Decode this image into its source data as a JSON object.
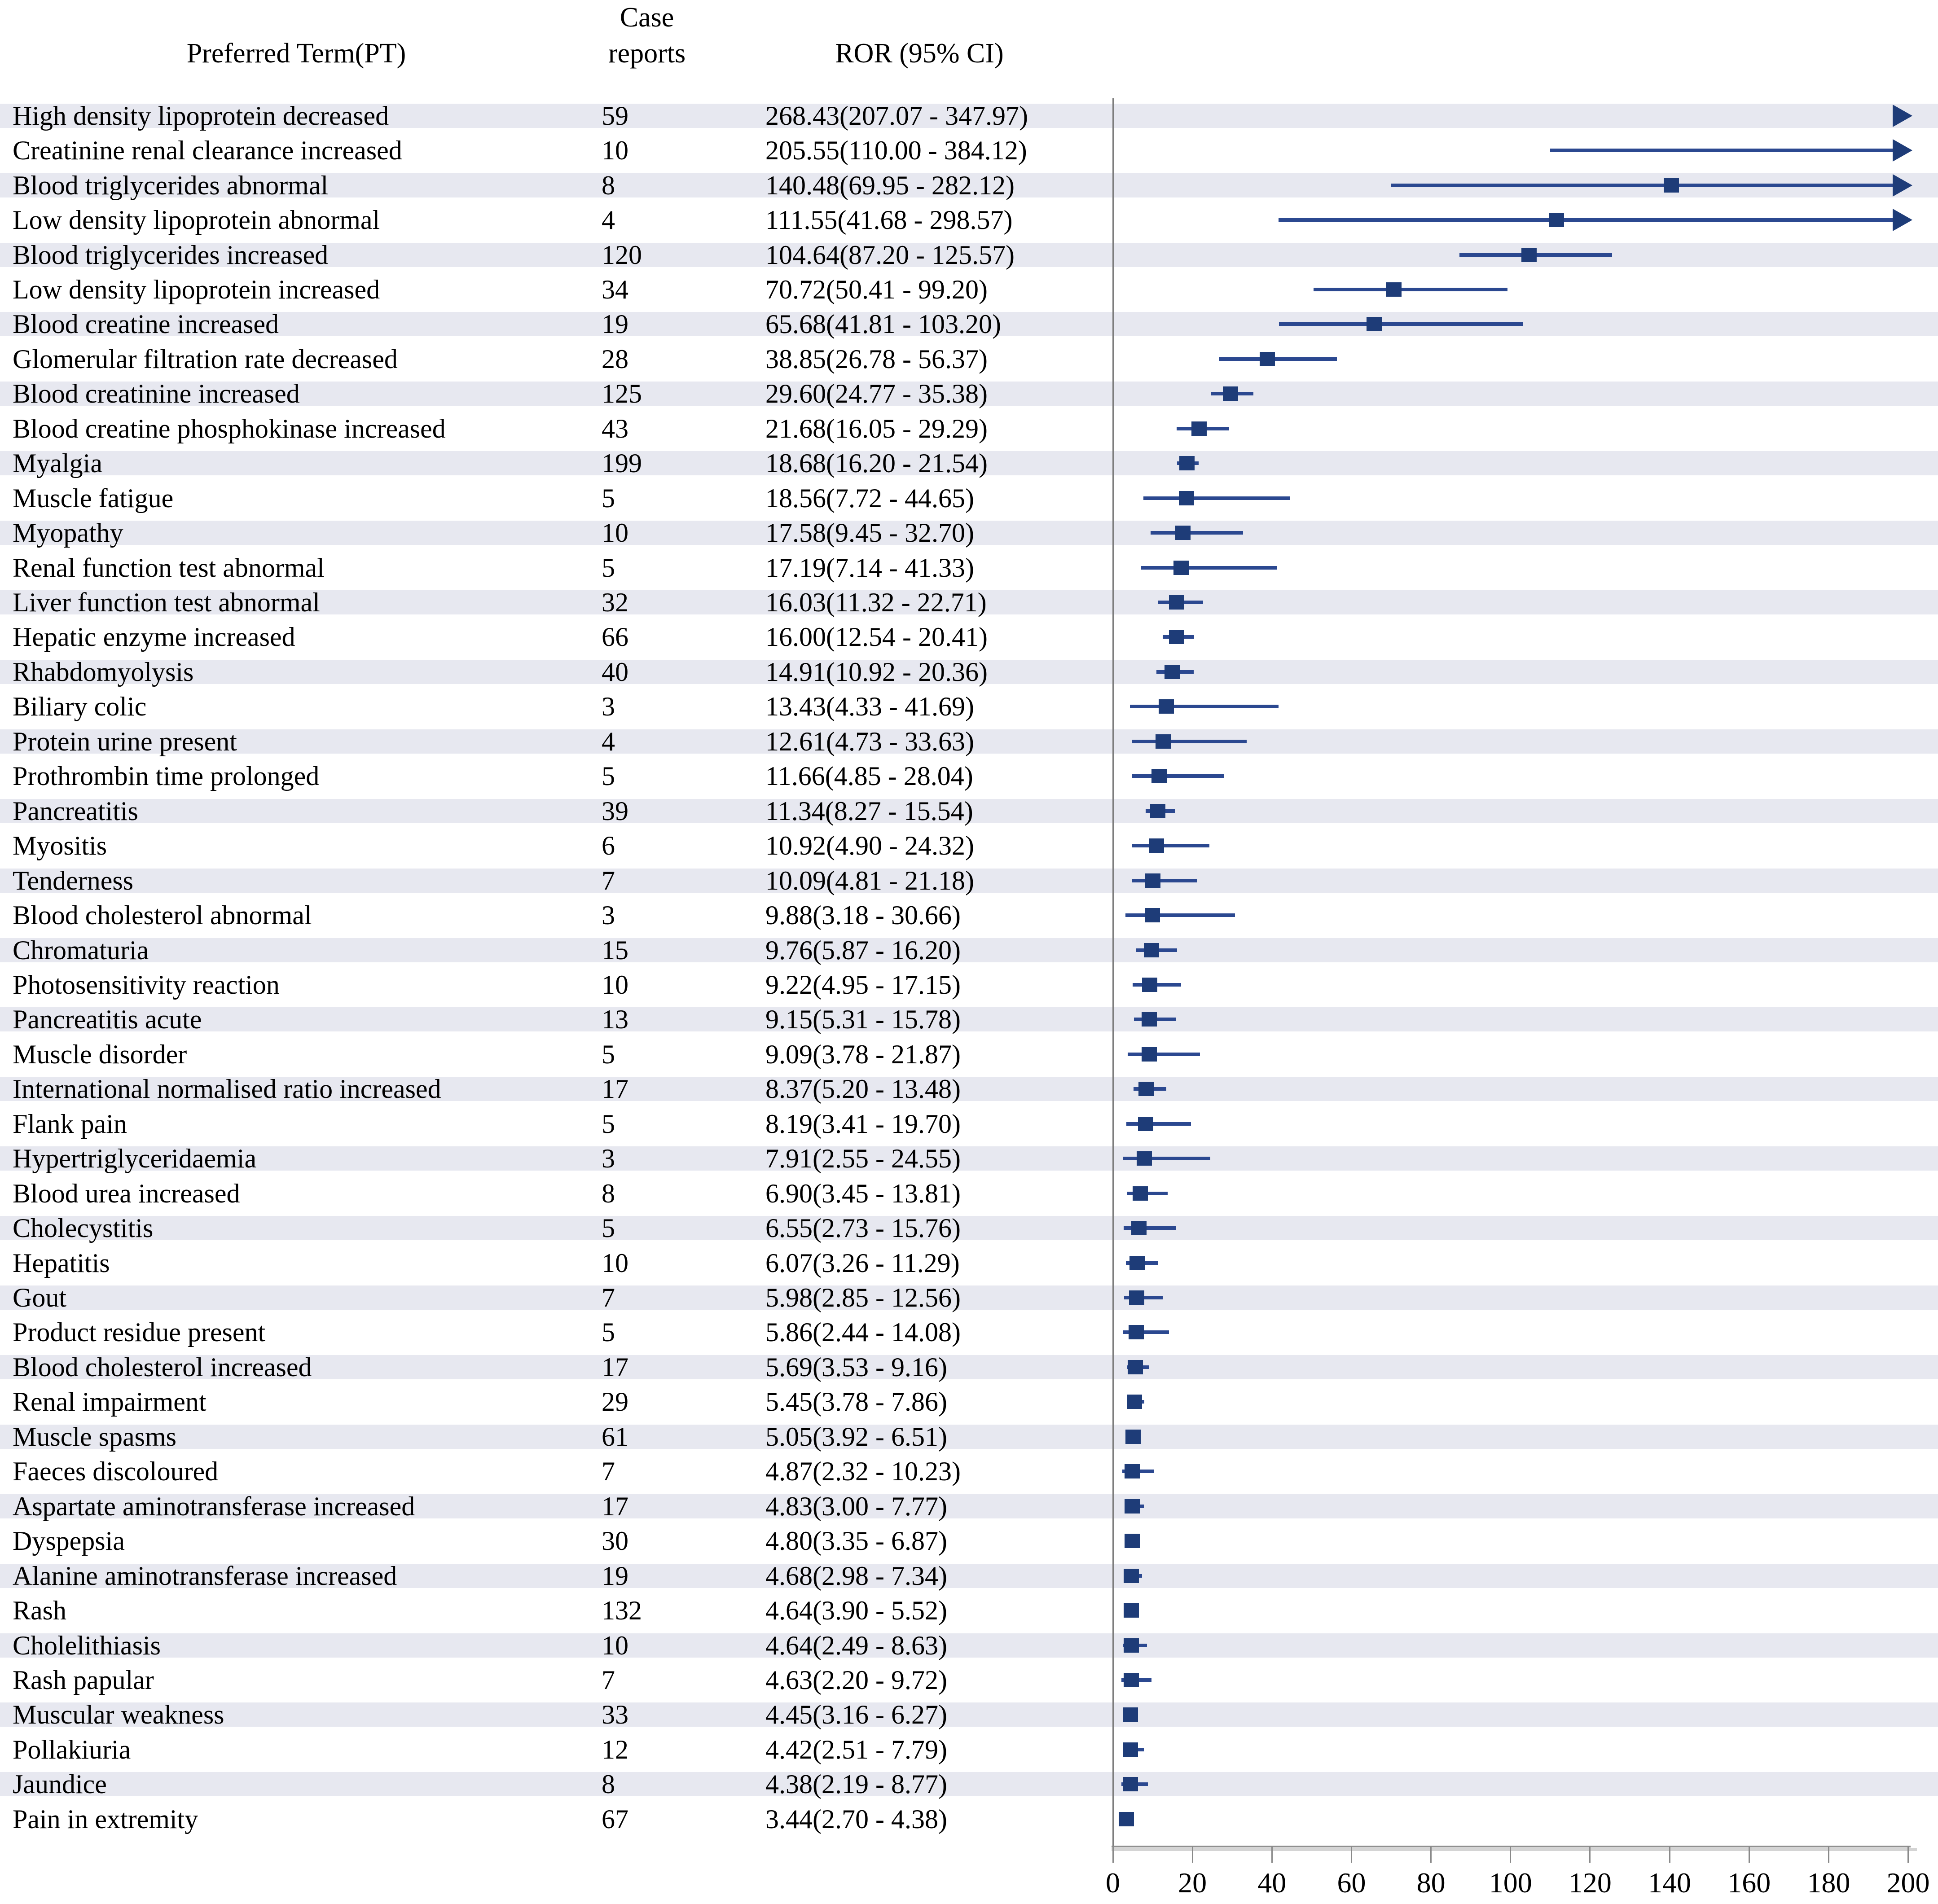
{
  "header": {
    "preferred_term": "Preferred Term(PT)",
    "case_line1": "Case",
    "case_line2": "reports",
    "ror": "ROR (95% CI)"
  },
  "colors": {
    "marker": "#1e3c78",
    "ci_line": "#2b4890",
    "stripe": "#e7e8f0",
    "axis": "#8a8a8a",
    "reference_line": "#7d7d7d",
    "text": "#000000"
  },
  "chart_data": {
    "type": "forest",
    "title": "",
    "columns": [
      "Preferred Term(PT)",
      "Case reports",
      "ROR (95% CI)"
    ],
    "xlabel": "",
    "xlim": [
      0,
      200
    ],
    "x_ticks": [
      0,
      20,
      40,
      60,
      80,
      100,
      120,
      140,
      160,
      180,
      200
    ],
    "reference_line_x": 0,
    "grid": false,
    "rows": [
      {
        "pt": "High density lipoprotein decreased",
        "case_reports": 59,
        "ror": 268.43,
        "ci_low": 207.07,
        "ci_high": 347.97
      },
      {
        "pt": "Creatinine renal clearance increased",
        "case_reports": 10,
        "ror": 205.55,
        "ci_low": 110.0,
        "ci_high": 384.12
      },
      {
        "pt": "Blood triglycerides abnormal",
        "case_reports": 8,
        "ror": 140.48,
        "ci_low": 69.95,
        "ci_high": 282.12
      },
      {
        "pt": "Low density lipoprotein abnormal",
        "case_reports": 4,
        "ror": 111.55,
        "ci_low": 41.68,
        "ci_high": 298.57
      },
      {
        "pt": "Blood triglycerides increased",
        "case_reports": 120,
        "ror": 104.64,
        "ci_low": 87.2,
        "ci_high": 125.57
      },
      {
        "pt": "Low density lipoprotein increased",
        "case_reports": 34,
        "ror": 70.72,
        "ci_low": 50.41,
        "ci_high": 99.2
      },
      {
        "pt": "Blood creatine increased",
        "case_reports": 19,
        "ror": 65.68,
        "ci_low": 41.81,
        "ci_high": 103.2
      },
      {
        "pt": "Glomerular filtration rate decreased",
        "case_reports": 28,
        "ror": 38.85,
        "ci_low": 26.78,
        "ci_high": 56.37
      },
      {
        "pt": "Blood creatinine increased",
        "case_reports": 125,
        "ror": 29.6,
        "ci_low": 24.77,
        "ci_high": 35.38
      },
      {
        "pt": "Blood creatine phosphokinase increased",
        "case_reports": 43,
        "ror": 21.68,
        "ci_low": 16.05,
        "ci_high": 29.29
      },
      {
        "pt": "Myalgia",
        "case_reports": 199,
        "ror": 18.68,
        "ci_low": 16.2,
        "ci_high": 21.54
      },
      {
        "pt": "Muscle fatigue",
        "case_reports": 5,
        "ror": 18.56,
        "ci_low": 7.72,
        "ci_high": 44.65
      },
      {
        "pt": "Myopathy",
        "case_reports": 10,
        "ror": 17.58,
        "ci_low": 9.45,
        "ci_high": 32.7
      },
      {
        "pt": "Renal function test abnormal",
        "case_reports": 5,
        "ror": 17.19,
        "ci_low": 7.14,
        "ci_high": 41.33
      },
      {
        "pt": "Liver function test abnormal",
        "case_reports": 32,
        "ror": 16.03,
        "ci_low": 11.32,
        "ci_high": 22.71
      },
      {
        "pt": "Hepatic enzyme increased",
        "case_reports": 66,
        "ror": 16.0,
        "ci_low": 12.54,
        "ci_high": 20.41
      },
      {
        "pt": "Rhabdomyolysis",
        "case_reports": 40,
        "ror": 14.91,
        "ci_low": 10.92,
        "ci_high": 20.36
      },
      {
        "pt": "Biliary colic",
        "case_reports": 3,
        "ror": 13.43,
        "ci_low": 4.33,
        "ci_high": 41.69
      },
      {
        "pt": "Protein urine present",
        "case_reports": 4,
        "ror": 12.61,
        "ci_low": 4.73,
        "ci_high": 33.63
      },
      {
        "pt": "Prothrombin time prolonged",
        "case_reports": 5,
        "ror": 11.66,
        "ci_low": 4.85,
        "ci_high": 28.04
      },
      {
        "pt": "Pancreatitis",
        "case_reports": 39,
        "ror": 11.34,
        "ci_low": 8.27,
        "ci_high": 15.54
      },
      {
        "pt": "Myositis",
        "case_reports": 6,
        "ror": 10.92,
        "ci_low": 4.9,
        "ci_high": 24.32
      },
      {
        "pt": "Tenderness",
        "case_reports": 7,
        "ror": 10.09,
        "ci_low": 4.81,
        "ci_high": 21.18
      },
      {
        "pt": "Blood cholesterol abnormal",
        "case_reports": 3,
        "ror": 9.88,
        "ci_low": 3.18,
        "ci_high": 30.66
      },
      {
        "pt": "Chromaturia",
        "case_reports": 15,
        "ror": 9.76,
        "ci_low": 5.87,
        "ci_high": 16.2
      },
      {
        "pt": "Photosensitivity reaction",
        "case_reports": 10,
        "ror": 9.22,
        "ci_low": 4.95,
        "ci_high": 17.15
      },
      {
        "pt": "Pancreatitis acute",
        "case_reports": 13,
        "ror": 9.15,
        "ci_low": 5.31,
        "ci_high": 15.78
      },
      {
        "pt": "Muscle disorder",
        "case_reports": 5,
        "ror": 9.09,
        "ci_low": 3.78,
        "ci_high": 21.87
      },
      {
        "pt": "International normalised ratio increased",
        "case_reports": 17,
        "ror": 8.37,
        "ci_low": 5.2,
        "ci_high": 13.48
      },
      {
        "pt": "Flank pain",
        "case_reports": 5,
        "ror": 8.19,
        "ci_low": 3.41,
        "ci_high": 19.7
      },
      {
        "pt": "Hypertriglyceridaemia",
        "case_reports": 3,
        "ror": 7.91,
        "ci_low": 2.55,
        "ci_high": 24.55
      },
      {
        "pt": "Blood urea increased",
        "case_reports": 8,
        "ror": 6.9,
        "ci_low": 3.45,
        "ci_high": 13.81
      },
      {
        "pt": "Cholecystitis",
        "case_reports": 5,
        "ror": 6.55,
        "ci_low": 2.73,
        "ci_high": 15.76
      },
      {
        "pt": "Hepatitis",
        "case_reports": 10,
        "ror": 6.07,
        "ci_low": 3.26,
        "ci_high": 11.29
      },
      {
        "pt": "Gout",
        "case_reports": 7,
        "ror": 5.98,
        "ci_low": 2.85,
        "ci_high": 12.56
      },
      {
        "pt": "Product residue present",
        "case_reports": 5,
        "ror": 5.86,
        "ci_low": 2.44,
        "ci_high": 14.08
      },
      {
        "pt": "Blood cholesterol increased",
        "case_reports": 17,
        "ror": 5.69,
        "ci_low": 3.53,
        "ci_high": 9.16
      },
      {
        "pt": "Renal impairment",
        "case_reports": 29,
        "ror": 5.45,
        "ci_low": 3.78,
        "ci_high": 7.86
      },
      {
        "pt": "Muscle spasms",
        "case_reports": 61,
        "ror": 5.05,
        "ci_low": 3.92,
        "ci_high": 6.51
      },
      {
        "pt": "Faeces discoloured",
        "case_reports": 7,
        "ror": 4.87,
        "ci_low": 2.32,
        "ci_high": 10.23
      },
      {
        "pt": "Aspartate aminotransferase increased",
        "case_reports": 17,
        "ror": 4.83,
        "ci_low": 3.0,
        "ci_high": 7.77
      },
      {
        "pt": "Dyspepsia",
        "case_reports": 30,
        "ror": 4.8,
        "ci_low": 3.35,
        "ci_high": 6.87
      },
      {
        "pt": "Alanine aminotransferase increased",
        "case_reports": 19,
        "ror": 4.68,
        "ci_low": 2.98,
        "ci_high": 7.34
      },
      {
        "pt": "Rash",
        "case_reports": 132,
        "ror": 4.64,
        "ci_low": 3.9,
        "ci_high": 5.52
      },
      {
        "pt": "Cholelithiasis",
        "case_reports": 10,
        "ror": 4.64,
        "ci_low": 2.49,
        "ci_high": 8.63
      },
      {
        "pt": "Rash papular",
        "case_reports": 7,
        "ror": 4.63,
        "ci_low": 2.2,
        "ci_high": 9.72
      },
      {
        "pt": "Muscular weakness",
        "case_reports": 33,
        "ror": 4.45,
        "ci_low": 3.16,
        "ci_high": 6.27
      },
      {
        "pt": "Pollakiuria",
        "case_reports": 12,
        "ror": 4.42,
        "ci_low": 2.51,
        "ci_high": 7.79
      },
      {
        "pt": "Jaundice",
        "case_reports": 8,
        "ror": 4.38,
        "ci_low": 2.19,
        "ci_high": 8.77
      },
      {
        "pt": "Pain in extremity",
        "case_reports": 67,
        "ror": 3.44,
        "ci_low": 2.7,
        "ci_high": 4.38
      }
    ]
  }
}
